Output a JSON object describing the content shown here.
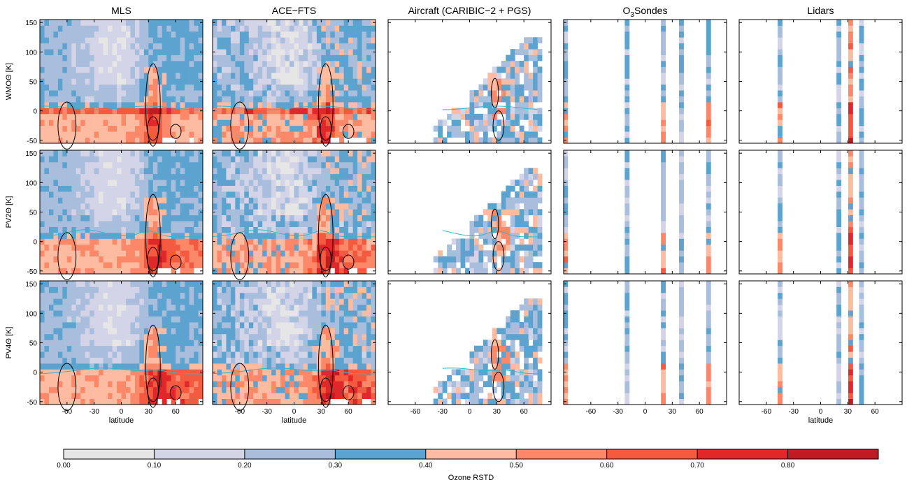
{
  "chart_data": {
    "type": "heatmap",
    "columns": [
      {
        "title": "MLS"
      },
      {
        "title": "ACE−FTS"
      },
      {
        "title": "Aircraft (CARIBIC−2 + PGS)"
      },
      {
        "title_main": "O",
        "title_sub": "3",
        "title_rest": "Sondes"
      },
      {
        "title": "Lidars"
      }
    ],
    "rows": [
      {
        "ylabel": "WMOΘ [K]"
      },
      {
        "ylabel": "PV2Θ [K]"
      },
      {
        "ylabel": "PV4Θ [K]"
      }
    ],
    "x_axis": {
      "label": "latitude",
      "ticks": [
        -60,
        -30,
        0,
        30,
        60
      ],
      "range": [
        -90,
        90
      ]
    },
    "y_axis": {
      "ticks": [
        -50,
        0,
        50,
        100,
        150
      ],
      "range": [
        -55,
        155
      ]
    },
    "colorbar": {
      "label": "Ozone RSTD",
      "tick_labels": [
        "0.00",
        "0.10",
        "0.20",
        "0.30",
        "0.40",
        "0.50",
        "0.60",
        "0.70",
        "0.80"
      ],
      "colors": [
        "#e6e6e6",
        "#d4d4e8",
        "#a9bddc",
        "#5da3cf",
        "#fdbba1",
        "#fb8868",
        "#f35a3f",
        "#e0282a",
        "#c11b22"
      ]
    },
    "station_latitudes": {
      "O3Sondes": [
        -88,
        -20,
        20,
        40,
        70
      ],
      "Lidars": [
        -45,
        20,
        33,
        45
      ]
    }
  }
}
